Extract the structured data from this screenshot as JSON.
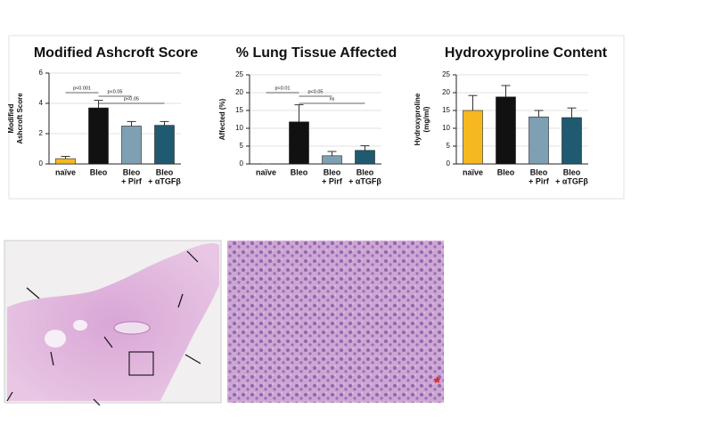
{
  "chart_data": [
    {
      "type": "bar",
      "title": "Modified Ashcroft Score",
      "y_label": [
        "Modified",
        "Ashcroft Score"
      ],
      "categories": [
        [
          "naïve"
        ],
        [
          "Bleo"
        ],
        [
          "Bleo",
          "+ Pirf"
        ],
        [
          "Bleo",
          "+ αTGFβ"
        ]
      ],
      "values": [
        0.35,
        3.7,
        2.5,
        2.55
      ],
      "errors": [
        0.15,
        0.5,
        0.3,
        0.25
      ],
      "colors": [
        "#f5b820",
        "#111111",
        "#7f9fb2",
        "#1f5a70"
      ],
      "ylim": [
        0,
        6
      ],
      "yticks": [
        0,
        2,
        4,
        6
      ],
      "grid": true,
      "brackets": [
        "p<0.001",
        "p<0.05",
        "p<0.05"
      ]
    },
    {
      "type": "bar",
      "title": "% Lung Tissue Affected",
      "y_label": [
        "Affected (%)"
      ],
      "categories": [
        [
          "naïve"
        ],
        [
          "Bleo"
        ],
        [
          "Bleo",
          "+ Pirf"
        ],
        [
          "Bleo",
          "+ αTGFβ"
        ]
      ],
      "values": [
        0,
        11.8,
        2.3,
        3.8
      ],
      "errors": [
        0,
        4.8,
        1.2,
        1.3
      ],
      "colors": [
        "#f5b820",
        "#111111",
        "#7f9fb2",
        "#1f5a70"
      ],
      "ylim": [
        0,
        25
      ],
      "yticks": [
        0,
        5,
        10,
        15,
        20,
        25
      ],
      "grid": true,
      "brackets": [
        "p<0.01",
        "p<0.05",
        "ns"
      ]
    },
    {
      "type": "bar",
      "title": "Hydroxyproline Content",
      "y_label": [
        "Hydroxyproline",
        "(mg/ml)"
      ],
      "categories": [
        [
          "naïve"
        ],
        [
          "Bleo"
        ],
        [
          "Bleo",
          "+ Pirf"
        ],
        [
          "Bleo",
          "+ αTGFβ"
        ]
      ],
      "values": [
        15,
        18.8,
        13.2,
        13
      ],
      "errors": [
        4.2,
        3.2,
        1.8,
        2.7
      ],
      "colors": [
        "#f5b820",
        "#111111",
        "#7f9fb2",
        "#1f5a70"
      ],
      "ylim": [
        0,
        25
      ],
      "yticks": [
        0,
        5,
        10,
        15,
        20,
        25
      ],
      "grid": true,
      "brackets": []
    }
  ]
}
